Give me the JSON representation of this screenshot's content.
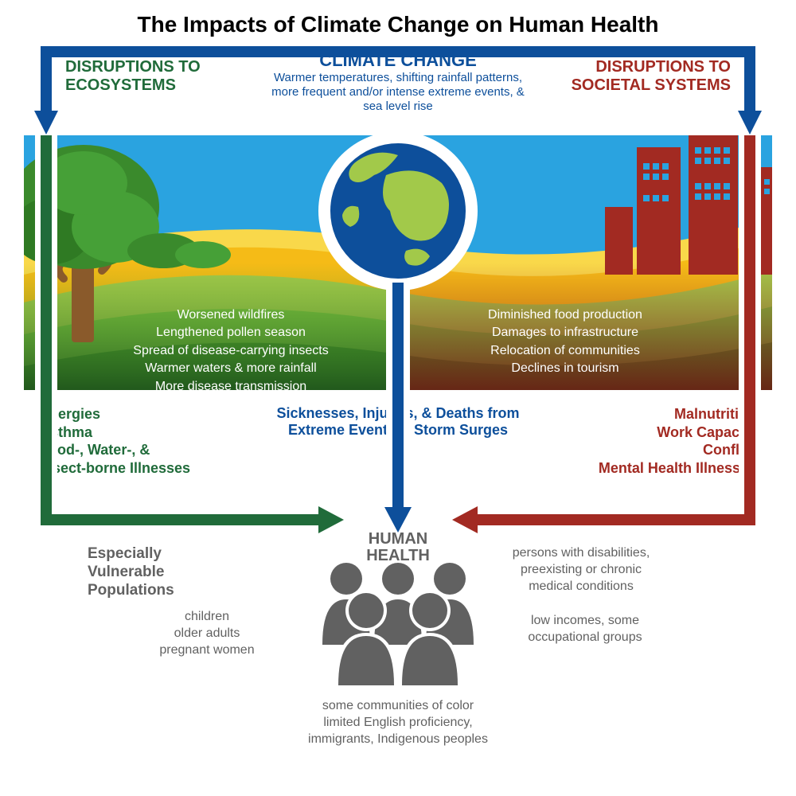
{
  "title": "The Impacts of Climate Change on Human Health",
  "colors": {
    "blue": "#0d4f9b",
    "green": "#206b3a",
    "red": "#a22a22",
    "sky": "#2aa3e0",
    "grass1": "#7abf3e",
    "grass2": "#4c9a2a",
    "orange": "#f5bb17",
    "yellow": "#f9d84a",
    "tree_trunk": "#8a5a2b",
    "tree_leaf": "#3a8a2c",
    "building": "#a22a22",
    "people": "#616161",
    "land_green": "#a2c94a"
  },
  "header": {
    "eco": "DISRUPTIONS TO\nECOSYSTEMS",
    "cc_title": "CLIMATE CHANGE",
    "cc_sub": "Warmer temperatures, shifting rainfall patterns, more frequent and/or intense extreme events, & sea level rise",
    "soc": "DISRUPTIONS TO\nSOCIETAL SYSTEMS"
  },
  "eco_effects": [
    "Worsened wildfires",
    "Lengthened pollen season",
    "Spread of disease-carrying insects",
    "Warmer waters & more rainfall",
    "More disease transmission"
  ],
  "soc_effects": [
    "Diminished food production",
    "Damages to infrastructure",
    "Relocation of communities",
    "Declines in tourism"
  ],
  "outcomes": {
    "eco": "Allergies\nAsthma\nFood-, Water-, &\nInsect-borne Illnesses",
    "center": "Sicknesses, Injuries, & Deaths from\nExtreme Events & Storm Surges",
    "soc": "Malnutrition\nWork Capacity\nConflict\nMental Health Illnesses"
  },
  "human_health": "HUMAN\nHEALTH",
  "vulnerable": {
    "title": "Especially\nVulnerable\nPopulations",
    "a": "children\nolder adults\npregnant women",
    "b": "persons with disabilities,\npreexisting or chronic\nmedical conditions",
    "c": "low incomes, some\noccupational groups",
    "d": "some communities of color\nlimited English proficiency,\nimmigrants, Indigenous peoples"
  },
  "arrows": {
    "stroke_width": 14,
    "head_size": 26
  }
}
